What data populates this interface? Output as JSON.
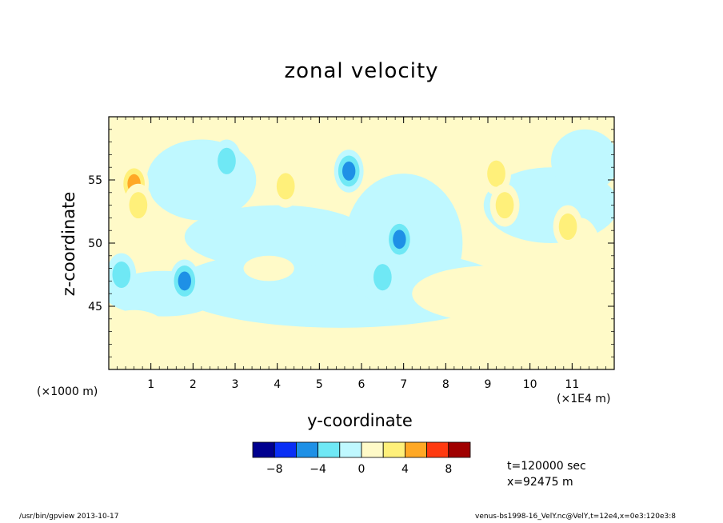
{
  "chart_data": {
    "type": "heatmap",
    "title": "zonal velocity",
    "xlabel": "y-coordinate",
    "ylabel": "z-coordinate",
    "x_unit_left": "(×1000 m)",
    "x_unit_right": "(×1E4 m)",
    "xlim": [
      0,
      12
    ],
    "ylim": [
      40,
      60
    ],
    "x_ticks": [
      1,
      2,
      3,
      4,
      5,
      6,
      7,
      8,
      9,
      10,
      11
    ],
    "x_tick_labels": [
      "1",
      "2",
      "3",
      "4",
      "5",
      "6",
      "7",
      "8",
      "9",
      "10",
      "11"
    ],
    "y_ticks": [
      45,
      50,
      55
    ],
    "y_tick_labels": [
      "45",
      "50",
      "55"
    ],
    "colorbar": {
      "bounds": [
        -10,
        -8,
        -6,
        -4,
        -2,
        0,
        2,
        4,
        6,
        8,
        10
      ],
      "tick_values": [
        -8,
        -4,
        0,
        4,
        8
      ],
      "tick_labels": [
        "−8",
        "−4",
        "0",
        "4",
        "8"
      ],
      "colors": [
        "#00008f",
        "#0a2ff5",
        "#1e90e6",
        "#6fe8f5",
        "#bff8ff",
        "#fffac8",
        "#fff07a",
        "#ffa825",
        "#ff3a10",
        "#a00000"
      ]
    },
    "features": [
      {
        "y": 0.6,
        "z": 54.7,
        "value": 7
      },
      {
        "y": 0.7,
        "z": 53.0,
        "value": 5
      },
      {
        "y": 0.3,
        "z": 47.5,
        "value": -5
      },
      {
        "y": 1.8,
        "z": 47.0,
        "value": -7
      },
      {
        "y": 2.8,
        "z": 56.5,
        "value": -5
      },
      {
        "y": 4.2,
        "z": 54.5,
        "value": 5
      },
      {
        "y": 5.7,
        "z": 55.7,
        "value": -6
      },
      {
        "y": 6.9,
        "z": 50.3,
        "value": -6
      },
      {
        "y": 6.5,
        "z": 47.3,
        "value": -5
      },
      {
        "y": 9.2,
        "z": 55.5,
        "value": 5
      },
      {
        "y": 9.4,
        "z": 53.0,
        "value": 5
      },
      {
        "y": 10.9,
        "z": 51.3,
        "value": 5
      }
    ]
  },
  "info": {
    "time": "t=120000 sec",
    "position": "x=92475 m"
  },
  "footer": {
    "left": "/usr/bin/gpview  2013-10-17",
    "right": "venus-bs1998-16_VelY.nc@VelY,t=12e4,x=0e3:120e3:8"
  }
}
